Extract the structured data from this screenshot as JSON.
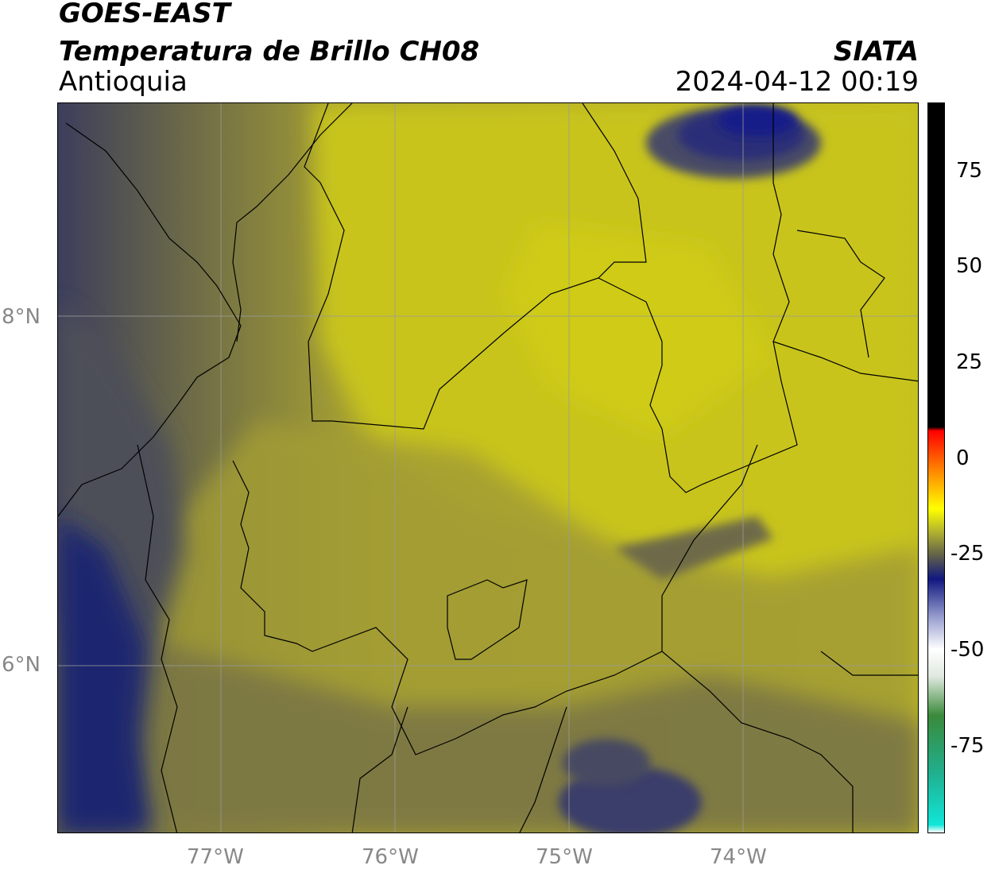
{
  "header": {
    "satellite": "GOES-EAST",
    "product": "Temperatura de Brillo CH08",
    "region": "Antioquia",
    "agency": "SIATA",
    "datetime": "2024-04-12 00:19"
  },
  "axes": {
    "lat_labels": [
      "8°N",
      "6°N"
    ],
    "lon_labels": [
      "77°W",
      "76°W",
      "75°W",
      "74°W"
    ]
  },
  "colorbar": {
    "ticks": [
      "75",
      "50",
      "25",
      "0",
      "-25",
      "-50",
      "-75"
    ],
    "stops": [
      {
        "value": -95,
        "color": "#ffffff"
      },
      {
        "value": -93,
        "color": "#10e6d8"
      },
      {
        "value": -80,
        "color": "#20b090"
      },
      {
        "value": -65,
        "color": "#3a8a3a"
      },
      {
        "value": -55,
        "color": "#dfe8df"
      },
      {
        "value": -48,
        "color": "#ffffff"
      },
      {
        "value": -40,
        "color": "#9aa0d0"
      },
      {
        "value": -30,
        "color": "#101880"
      },
      {
        "value": -24,
        "color": "#60604a"
      },
      {
        "value": -18,
        "color": "#b0b030"
      },
      {
        "value": -12,
        "color": "#ffff00"
      },
      {
        "value": -3,
        "color": "#ff9000"
      },
      {
        "value": 8,
        "color": "#ff0000"
      },
      {
        "value": 9,
        "color": "#000000"
      },
      {
        "value": 92,
        "color": "#000000"
      }
    ]
  },
  "colors": {
    "field_yellow": "#c6c020",
    "field_olive": "#9a9436",
    "field_dark": "#5e5e4e",
    "field_navy": "#182070",
    "grid": "#9a9a9a",
    "border_line": "#000000"
  }
}
